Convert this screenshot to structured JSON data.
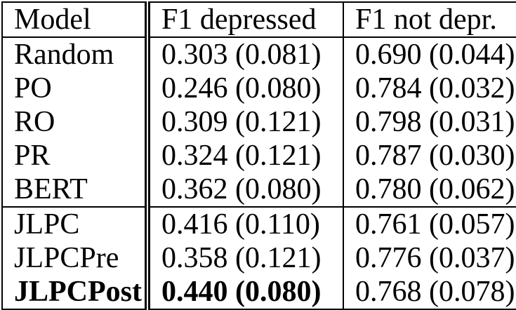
{
  "page": {
    "background_color": "#ffffff",
    "border_color": "#000000",
    "text_color": "#000000"
  },
  "table": {
    "headers": [
      "Model",
      "F1 depressed",
      "F1 not depr."
    ],
    "rows": [
      {
        "model": "Random",
        "f1_depressed": "0.303 (0.081)",
        "f1_not_depr": "0.690 (0.044)"
      },
      {
        "model": "PO",
        "f1_depressed": "0.246 (0.080)",
        "f1_not_depr": "0.784 (0.032)"
      },
      {
        "model": "RO",
        "f1_depressed": "0.309 (0.121)",
        "f1_not_depr": "0.798 (0.031)"
      },
      {
        "model": "PR",
        "f1_depressed": "0.324 (0.121)",
        "f1_not_depr": "0.787 (0.030)"
      },
      {
        "model": "BERT",
        "f1_depressed": "0.362 (0.080)",
        "f1_not_depr": "0.780 (0.062)"
      },
      {
        "model": "JLPC",
        "f1_depressed": "0.416 (0.110)",
        "f1_not_depr": "0.761 (0.057)"
      },
      {
        "model": "JLPCPre",
        "f1_depressed": "0.358 (0.121)",
        "f1_not_depr": "0.776 (0.037)"
      },
      {
        "model": "JLPCPost",
        "f1_depressed": "0.440 (0.080)",
        "f1_not_depr": "0.768 (0.078)"
      }
    ],
    "bold_row_index": 7,
    "group_start_row_index": 5
  }
}
